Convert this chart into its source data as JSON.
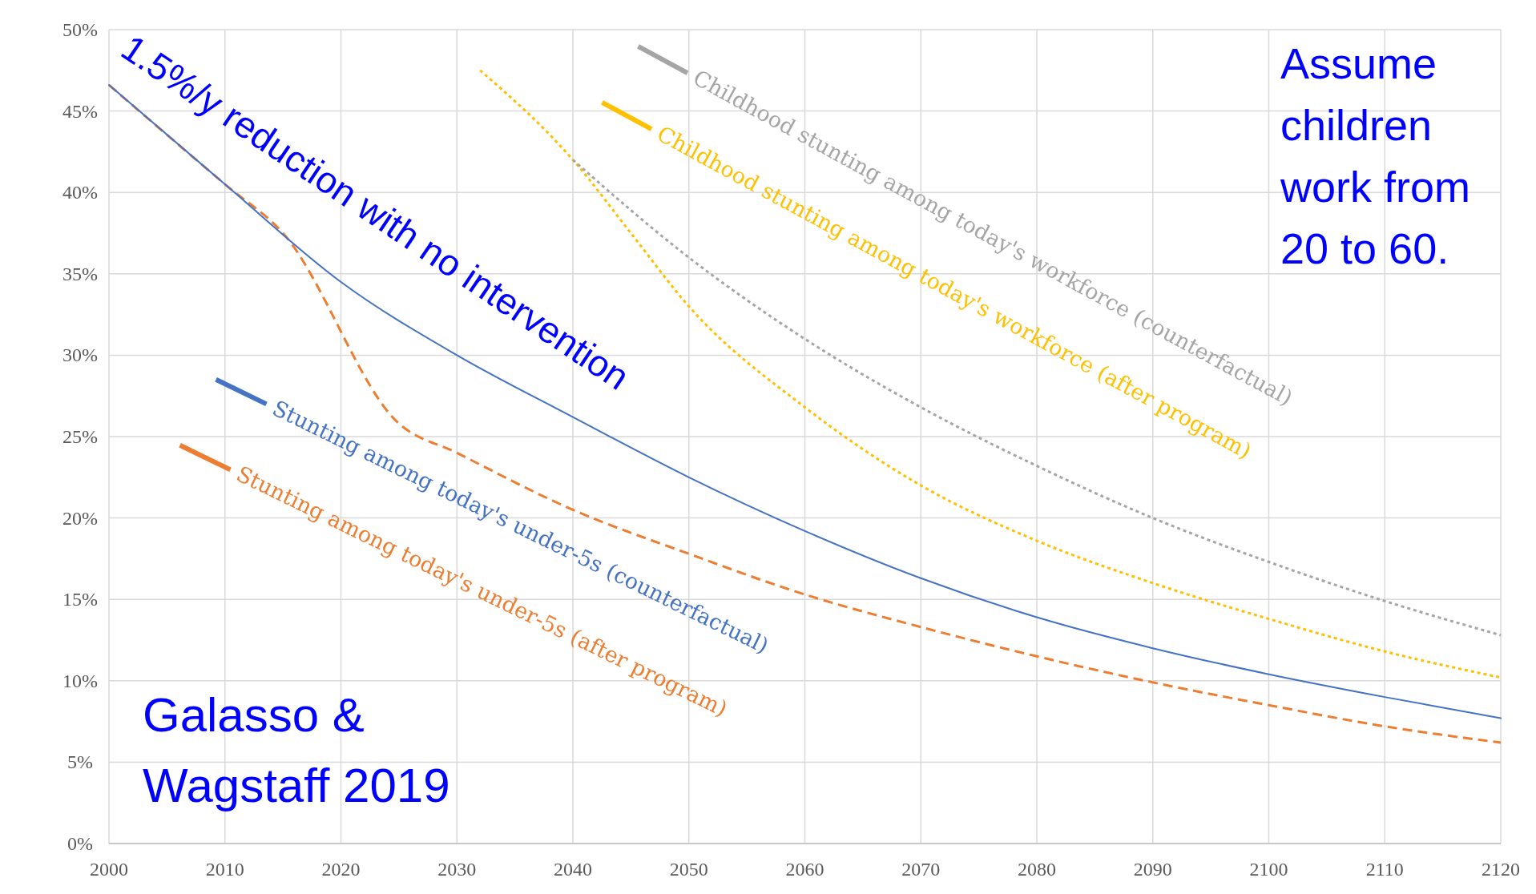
{
  "chart_data": {
    "type": "line",
    "x": [
      2000,
      2010,
      2020,
      2030,
      2040,
      2050,
      2060,
      2070,
      2080,
      2090,
      2100,
      2110,
      2120
    ],
    "series": [
      {
        "name": "Stunting among today's under-5s (counterfactual)",
        "color": "#4472c4",
        "line_style": "solid",
        "values": [
          46.6,
          40.5,
          34.5,
          30,
          26.2,
          22.5,
          19.2,
          16.3,
          13.9,
          12,
          10.4,
          9,
          7.7
        ]
      },
      {
        "name": "Stunting among today's under-5s (after program)",
        "color": "#ed7d31",
        "line_style": "dashed",
        "x": [
          2000,
          2010,
          2015,
          2025,
          2030,
          2040,
          2050,
          2060,
          2070,
          2080,
          2090,
          2100,
          2110,
          2120
        ],
        "values": [
          46.6,
          40.5,
          37.5,
          25.8,
          24,
          20.5,
          17.8,
          15.3,
          13.3,
          11.5,
          9.9,
          8.5,
          7.2,
          6.2
        ]
      },
      {
        "name": "Childhood stunting among today's workforce (counterfactual)",
        "color": "#a5a5a5",
        "line_style": "dotted",
        "x": [
          2040,
          2050,
          2060,
          2070,
          2080,
          2090,
          2100,
          2110,
          2120
        ],
        "values": [
          42,
          36,
          31,
          26.8,
          23.2,
          20,
          17.3,
          14.9,
          12.8
        ]
      },
      {
        "name": "Childhood stunting among today's workforce (after program)",
        "color": "#ffc000",
        "line_style": "dotted",
        "x": [
          2032,
          2040,
          2045,
          2050,
          2060,
          2070,
          2080,
          2090,
          2100,
          2110,
          2120
        ],
        "values": [
          47.5,
          42,
          37.5,
          33,
          26.8,
          22,
          18.6,
          16,
          13.8,
          11.8,
          10.2
        ]
      }
    ],
    "xlim": [
      2000,
      2120
    ],
    "xticks": [
      2000,
      2010,
      2020,
      2030,
      2040,
      2050,
      2060,
      2070,
      2080,
      2090,
      2100,
      2110,
      2120
    ],
    "ylim": [
      0,
      50
    ],
    "yticks": [
      {
        "value": 0,
        "label": "0%"
      },
      {
        "value": 5,
        "label": "5%"
      },
      {
        "value": 10,
        "label": "10%"
      },
      {
        "value": 15,
        "label": "15%"
      },
      {
        "value": 20,
        "label": "20%"
      },
      {
        "value": 25,
        "label": "25%"
      },
      {
        "value": 30,
        "label": "30%"
      },
      {
        "value": 35,
        "label": "35%"
      },
      {
        "value": 40,
        "label": "40%"
      },
      {
        "value": 45,
        "label": "45%"
      },
      {
        "value": 50,
        "label": "50%"
      }
    ],
    "grid": true,
    "marker": "none",
    "annotations": [
      "1.5%/y reduction with no intervention",
      "Assume children work from 20 to 60.",
      "Galasso & Wagstaff 2019"
    ]
  }
}
